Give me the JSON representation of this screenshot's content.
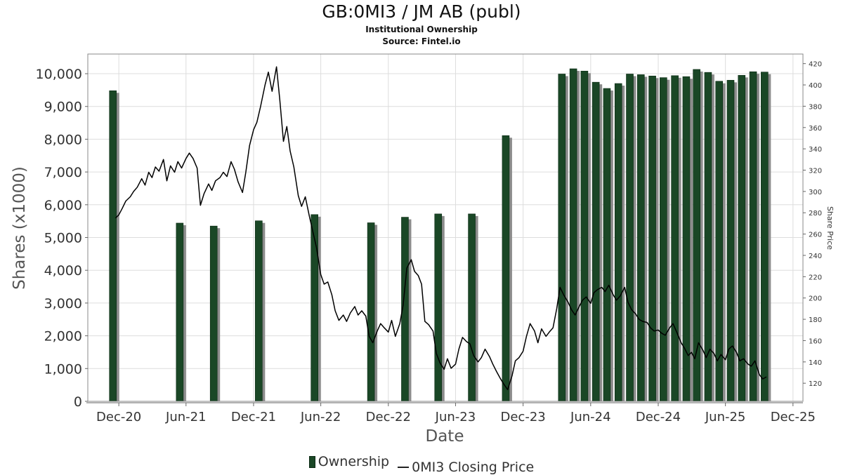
{
  "chart_data": {
    "type": "bar",
    "title": "GB:0MI3 / JM AB (publ)",
    "subtitle": "Institutional Ownership",
    "source": "Source: Fintel.io",
    "xlabel": "Date",
    "ylabel": "Shares (x1000)",
    "y2label": "Share Price",
    "ylim": [
      0,
      10600
    ],
    "y2lim": [
      103,
      429
    ],
    "yticks": [
      0,
      1000,
      2000,
      3000,
      4000,
      5000,
      6000,
      7000,
      8000,
      9000,
      10000
    ],
    "ytick_labels": [
      "0",
      "1,000",
      "2,000",
      "3,000",
      "4,000",
      "5,000",
      "6,000",
      "7,000",
      "8,000",
      "9,000",
      "10,000"
    ],
    "y2ticks": [
      120,
      140,
      160,
      180,
      200,
      220,
      240,
      260,
      280,
      300,
      320,
      340,
      360,
      380,
      400,
      420
    ],
    "xticks": [
      {
        "date": "2020-12-01",
        "label": "Dec-20"
      },
      {
        "date": "2021-06-01",
        "label": "Jun-21"
      },
      {
        "date": "2021-12-01",
        "label": "Dec-21"
      },
      {
        "date": "2022-06-01",
        "label": "Jun-22"
      },
      {
        "date": "2022-12-01",
        "label": "Dec-22"
      },
      {
        "date": "2023-06-01",
        "label": "Jun-23"
      },
      {
        "date": "2023-12-01",
        "label": "Dec-23"
      },
      {
        "date": "2024-06-01",
        "label": "Jun-24"
      },
      {
        "date": "2024-12-01",
        "label": "Dec-24"
      },
      {
        "date": "2025-06-01",
        "label": "Jun-25"
      },
      {
        "date": "2025-12-01",
        "label": "Dec-25"
      }
    ],
    "xlim": [
      "2020-09-08",
      "2025-12-28"
    ],
    "grid": true,
    "legend_position": "bottom-center",
    "colors": {
      "bar": "#1a4726",
      "bar_shadow": "#8c8c8c",
      "line": "#000000",
      "grid": "#dddddd"
    },
    "series": [
      {
        "name": "Ownership",
        "type": "bar",
        "points": [
          {
            "date": "2020-11-15",
            "value": 9480
          },
          {
            "date": "2021-05-15",
            "value": 5440
          },
          {
            "date": "2021-08-15",
            "value": 5350
          },
          {
            "date": "2021-12-15",
            "value": 5510
          },
          {
            "date": "2022-05-15",
            "value": 5700
          },
          {
            "date": "2022-10-15",
            "value": 5450
          },
          {
            "date": "2023-01-15",
            "value": 5620
          },
          {
            "date": "2023-04-15",
            "value": 5720
          },
          {
            "date": "2023-07-15",
            "value": 5720
          },
          {
            "date": "2023-10-15",
            "value": 8110
          },
          {
            "date": "2024-03-15",
            "value": 9990
          },
          {
            "date": "2024-04-15",
            "value": 10150
          },
          {
            "date": "2024-05-15",
            "value": 10080
          },
          {
            "date": "2024-06-15",
            "value": 9740
          },
          {
            "date": "2024-07-15",
            "value": 9550
          },
          {
            "date": "2024-08-15",
            "value": 9700
          },
          {
            "date": "2024-09-15",
            "value": 9990
          },
          {
            "date": "2024-10-15",
            "value": 9970
          },
          {
            "date": "2024-11-15",
            "value": 9930
          },
          {
            "date": "2024-12-15",
            "value": 9880
          },
          {
            "date": "2025-01-15",
            "value": 9940
          },
          {
            "date": "2025-02-15",
            "value": 9910
          },
          {
            "date": "2025-03-15",
            "value": 10130
          },
          {
            "date": "2025-04-15",
            "value": 10040
          },
          {
            "date": "2025-05-15",
            "value": 9770
          },
          {
            "date": "2025-06-15",
            "value": 9800
          },
          {
            "date": "2025-07-15",
            "value": 9950
          },
          {
            "date": "2025-08-15",
            "value": 10060
          },
          {
            "date": "2025-09-15",
            "value": 10050
          }
        ]
      },
      {
        "name": "0MI3 Closing Price",
        "type": "line",
        "axis": "right",
        "points": [
          [
            "2020-11-22",
            275
          ],
          [
            "2020-12-01",
            278
          ],
          [
            "2020-12-10",
            284
          ],
          [
            "2020-12-20",
            291
          ],
          [
            "2021-01-01",
            295
          ],
          [
            "2021-01-10",
            300
          ],
          [
            "2021-01-20",
            304
          ],
          [
            "2021-02-01",
            312
          ],
          [
            "2021-02-10",
            306
          ],
          [
            "2021-02-20",
            318
          ],
          [
            "2021-03-01",
            313
          ],
          [
            "2021-03-10",
            323
          ],
          [
            "2021-03-20",
            319
          ],
          [
            "2021-04-01",
            330
          ],
          [
            "2021-04-10",
            310
          ],
          [
            "2021-04-20",
            324
          ],
          [
            "2021-05-01",
            318
          ],
          [
            "2021-05-10",
            328
          ],
          [
            "2021-05-20",
            322
          ],
          [
            "2021-06-01",
            331
          ],
          [
            "2021-06-10",
            336
          ],
          [
            "2021-06-20",
            331
          ],
          [
            "2021-07-01",
            322
          ],
          [
            "2021-07-10",
            287
          ],
          [
            "2021-07-20",
            298
          ],
          [
            "2021-08-01",
            307
          ],
          [
            "2021-08-10",
            301
          ],
          [
            "2021-08-20",
            310
          ],
          [
            "2021-09-01",
            313
          ],
          [
            "2021-09-10",
            318
          ],
          [
            "2021-09-20",
            314
          ],
          [
            "2021-10-01",
            328
          ],
          [
            "2021-10-10",
            321
          ],
          [
            "2021-10-20",
            309
          ],
          [
            "2021-11-01",
            299
          ],
          [
            "2021-11-10",
            318
          ],
          [
            "2021-11-20",
            343
          ],
          [
            "2021-12-01",
            358
          ],
          [
            "2021-12-10",
            365
          ],
          [
            "2021-12-20",
            380
          ],
          [
            "2022-01-01",
            400
          ],
          [
            "2022-01-10",
            412
          ],
          [
            "2022-01-20",
            394
          ],
          [
            "2022-02-01",
            417
          ],
          [
            "2022-02-10",
            386
          ],
          [
            "2022-02-20",
            347
          ],
          [
            "2022-03-01",
            361
          ],
          [
            "2022-03-10",
            338
          ],
          [
            "2022-03-20",
            323
          ],
          [
            "2022-04-01",
            296
          ],
          [
            "2022-04-10",
            286
          ],
          [
            "2022-04-20",
            295
          ],
          [
            "2022-05-01",
            277
          ],
          [
            "2022-05-10",
            263
          ],
          [
            "2022-05-20",
            248
          ],
          [
            "2022-06-01",
            222
          ],
          [
            "2022-06-10",
            213
          ],
          [
            "2022-06-20",
            215
          ],
          [
            "2022-07-01",
            203
          ],
          [
            "2022-07-10",
            188
          ],
          [
            "2022-07-20",
            179
          ],
          [
            "2022-08-01",
            184
          ],
          [
            "2022-08-10",
            178
          ],
          [
            "2022-08-20",
            186
          ],
          [
            "2022-09-01",
            192
          ],
          [
            "2022-09-10",
            184
          ],
          [
            "2022-09-20",
            188
          ],
          [
            "2022-10-01",
            183
          ],
          [
            "2022-10-10",
            164
          ],
          [
            "2022-10-20",
            158
          ],
          [
            "2022-11-01",
            169
          ],
          [
            "2022-11-10",
            176
          ],
          [
            "2022-11-20",
            172
          ],
          [
            "2022-12-01",
            168
          ],
          [
            "2022-12-10",
            179
          ],
          [
            "2022-12-20",
            164
          ],
          [
            "2023-01-01",
            176
          ],
          [
            "2023-01-10",
            193
          ],
          [
            "2023-01-20",
            228
          ],
          [
            "2023-02-01",
            236
          ],
          [
            "2023-02-10",
            225
          ],
          [
            "2023-02-20",
            221
          ],
          [
            "2023-03-01",
            213
          ],
          [
            "2023-03-10",
            178
          ],
          [
            "2023-03-20",
            175
          ],
          [
            "2023-04-01",
            169
          ],
          [
            "2023-04-10",
            148
          ],
          [
            "2023-04-20",
            139
          ],
          [
            "2023-05-01",
            133
          ],
          [
            "2023-05-10",
            143
          ],
          [
            "2023-05-20",
            134
          ],
          [
            "2023-06-01",
            138
          ],
          [
            "2023-06-10",
            152
          ],
          [
            "2023-06-20",
            163
          ],
          [
            "2023-07-01",
            159
          ],
          [
            "2023-07-10",
            157
          ],
          [
            "2023-07-20",
            146
          ],
          [
            "2023-08-01",
            140
          ],
          [
            "2023-08-10",
            144
          ],
          [
            "2023-08-20",
            152
          ],
          [
            "2023-09-01",
            145
          ],
          [
            "2023-09-10",
            138
          ],
          [
            "2023-09-20",
            131
          ],
          [
            "2023-10-01",
            124
          ],
          [
            "2023-10-10",
            119
          ],
          [
            "2023-10-20",
            114
          ],
          [
            "2023-11-01",
            127
          ],
          [
            "2023-11-10",
            141
          ],
          [
            "2023-11-20",
            144
          ],
          [
            "2023-12-01",
            150
          ],
          [
            "2023-12-10",
            164
          ],
          [
            "2023-12-20",
            176
          ],
          [
            "2024-01-01",
            169
          ],
          [
            "2024-01-10",
            158
          ],
          [
            "2024-01-20",
            171
          ],
          [
            "2024-02-01",
            164
          ],
          [
            "2024-02-10",
            168
          ],
          [
            "2024-02-20",
            172
          ],
          [
            "2024-03-01",
            190
          ],
          [
            "2024-03-10",
            210
          ],
          [
            "2024-03-20",
            203
          ],
          [
            "2024-04-01",
            196
          ],
          [
            "2024-04-10",
            189
          ],
          [
            "2024-04-20",
            184
          ],
          [
            "2024-05-01",
            192
          ],
          [
            "2024-05-10",
            198
          ],
          [
            "2024-05-20",
            201
          ],
          [
            "2024-06-01",
            195
          ],
          [
            "2024-06-10",
            205
          ],
          [
            "2024-06-20",
            208
          ],
          [
            "2024-07-01",
            210
          ],
          [
            "2024-07-10",
            206
          ],
          [
            "2024-07-20",
            212
          ],
          [
            "2024-08-01",
            203
          ],
          [
            "2024-08-10",
            198
          ],
          [
            "2024-08-20",
            202
          ],
          [
            "2024-09-01",
            210
          ],
          [
            "2024-09-10",
            196
          ],
          [
            "2024-09-20",
            189
          ],
          [
            "2024-10-01",
            185
          ],
          [
            "2024-10-10",
            180
          ],
          [
            "2024-10-20",
            178
          ],
          [
            "2024-11-01",
            177
          ],
          [
            "2024-11-10",
            172
          ],
          [
            "2024-11-20",
            169
          ],
          [
            "2024-12-01",
            170
          ],
          [
            "2024-12-10",
            167
          ],
          [
            "2024-12-20",
            165
          ],
          [
            "2025-01-01",
            172
          ],
          [
            "2025-01-10",
            176
          ],
          [
            "2025-01-20",
            168
          ],
          [
            "2025-02-01",
            158
          ],
          [
            "2025-02-10",
            153
          ],
          [
            "2025-02-20",
            146
          ],
          [
            "2025-03-01",
            149
          ],
          [
            "2025-03-10",
            143
          ],
          [
            "2025-03-20",
            158
          ],
          [
            "2025-04-01",
            151
          ],
          [
            "2025-04-10",
            144
          ],
          [
            "2025-04-20",
            152
          ],
          [
            "2025-05-01",
            148
          ],
          [
            "2025-05-10",
            141
          ],
          [
            "2025-05-20",
            147
          ],
          [
            "2025-06-01",
            142
          ],
          [
            "2025-06-10",
            152
          ],
          [
            "2025-06-20",
            155
          ],
          [
            "2025-07-01",
            149
          ],
          [
            "2025-07-10",
            141
          ],
          [
            "2025-07-20",
            143
          ],
          [
            "2025-08-01",
            138
          ],
          [
            "2025-08-10",
            136
          ],
          [
            "2025-08-20",
            141
          ],
          [
            "2025-09-01",
            128
          ],
          [
            "2025-09-10",
            124
          ],
          [
            "2025-09-20",
            126
          ]
        ]
      }
    ]
  }
}
